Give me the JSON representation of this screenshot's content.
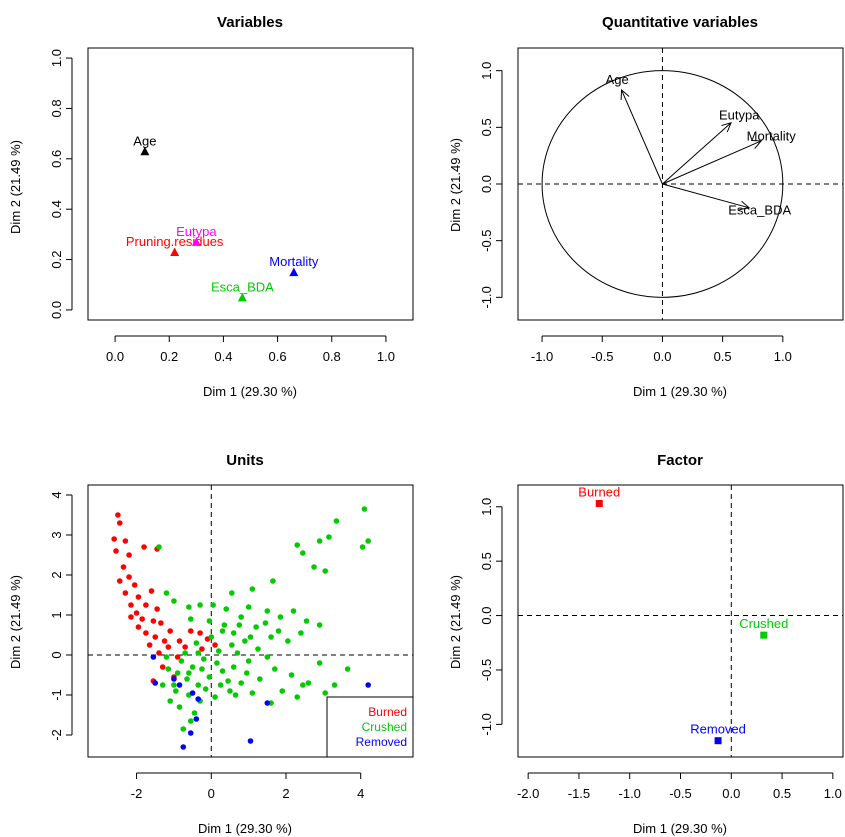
{
  "chart_data": [
    {
      "id": "variables",
      "type": "scatter",
      "title": "Variables",
      "xlabel": "Dim 1 (29.30 %)",
      "ylabel": "Dim 2 (21.49 %)",
      "xlim": [
        -0.1,
        1.1
      ],
      "ylim": [
        -0.04,
        1.04
      ],
      "xticks": [
        0.0,
        0.2,
        0.4,
        0.6,
        0.8,
        1.0
      ],
      "xtick_labels": [
        "0.0",
        "0.2",
        "0.4",
        "0.6",
        "0.8",
        "1.0"
      ],
      "yticks": [
        0.0,
        0.2,
        0.4,
        0.6,
        0.8,
        1.0
      ],
      "ytick_labels": [
        "0.0",
        "0.2",
        "0.4",
        "0.6",
        "0.8",
        "1.0"
      ],
      "points": [
        {
          "label": "Age",
          "x": 0.11,
          "y": 0.63,
          "color": "#000000"
        },
        {
          "label": "Pruning.residues",
          "x": 0.22,
          "y": 0.23,
          "color": "#ff0000"
        },
        {
          "label": "Eutypa",
          "x": 0.3,
          "y": 0.27,
          "color": "#ff00ff"
        },
        {
          "label": "Mortality",
          "x": 0.66,
          "y": 0.15,
          "color": "#0000ff"
        },
        {
          "label": "Esca_BDA",
          "x": 0.47,
          "y": 0.05,
          "color": "#00cc00"
        }
      ]
    },
    {
      "id": "quantitative",
      "type": "scatter",
      "title": "Quantitative variables",
      "xlabel": "Dim 1 (29.30 %)",
      "ylabel": "Dim 2 (21.49 %)",
      "xlim": [
        -1.2,
        1.5
      ],
      "ylim": [
        -1.2,
        1.2
      ],
      "xticks": [
        -1.0,
        -0.5,
        0.0,
        0.5,
        1.0
      ],
      "xtick_labels": [
        "-1.0",
        "-0.5",
        "0.0",
        "0.5",
        "1.0"
      ],
      "yticks": [
        -1.0,
        -0.5,
        0.0,
        0.5,
        1.0
      ],
      "ytick_labels": [
        "-1.0",
        "-0.5",
        "0.0",
        "0.5",
        "1.0"
      ],
      "circle": true,
      "arrows": [
        {
          "label": "Age",
          "x": -0.34,
          "y": 0.83
        },
        {
          "label": "Eutypa",
          "x": 0.57,
          "y": 0.54
        },
        {
          "label": "Mortality",
          "x": 0.82,
          "y": 0.38
        },
        {
          "label": "Esca_BDA",
          "x": 0.72,
          "y": -0.21
        }
      ]
    },
    {
      "id": "units",
      "type": "scatter",
      "title": "Units",
      "xlabel": "Dim 1 (29.30 %)",
      "ylabel": "Dim 2 (21.49 %)",
      "xlim": [
        -3.3,
        5.4
      ],
      "ylim": [
        -2.55,
        4.25
      ],
      "xticks": [
        -2,
        0,
        2,
        4
      ],
      "xtick_labels": [
        "-2",
        "0",
        "2",
        "4"
      ],
      "yticks": [
        -2,
        -1,
        0,
        1,
        2,
        3,
        4
      ],
      "ytick_labels": [
        "-2",
        "-1",
        "0",
        "1",
        "2",
        "3",
        "4"
      ],
      "legend": {
        "position": "bottom-right",
        "entries": [
          {
            "name": "Burned",
            "color": "#ff0000"
          },
          {
            "name": "Crushed",
            "color": "#00cc00"
          },
          {
            "name": "Removed",
            "color": "#0000ff"
          }
        ]
      },
      "series": [
        {
          "name": "Burned",
          "color": "#ff0000",
          "points": [
            [
              -2.5,
              3.5
            ],
            [
              -2.45,
              3.3
            ],
            [
              -2.6,
              2.9
            ],
            [
              -2.55,
              2.6
            ],
            [
              -2.3,
              2.85
            ],
            [
              -2.2,
              2.5
            ],
            [
              -1.8,
              2.7
            ],
            [
              -1.45,
              2.65
            ],
            [
              -2.35,
              2.2
            ],
            [
              -2.2,
              1.95
            ],
            [
              -2.05,
              1.75
            ],
            [
              -2.45,
              1.85
            ],
            [
              -2.3,
              1.55
            ],
            [
              -1.95,
              1.45
            ],
            [
              -1.6,
              1.6
            ],
            [
              -1.75,
              1.25
            ],
            [
              -1.45,
              1.15
            ],
            [
              -2.15,
              1.25
            ],
            [
              -2.0,
              1.05
            ],
            [
              -1.85,
              0.9
            ],
            [
              -1.55,
              0.85
            ],
            [
              -1.75,
              0.55
            ],
            [
              -1.5,
              0.45
            ],
            [
              -1.25,
              0.35
            ],
            [
              -1.65,
              0.25
            ],
            [
              -1.4,
              0.05
            ],
            [
              -1.15,
              0.2
            ],
            [
              -0.85,
              0.35
            ],
            [
              -1.1,
              0.6
            ],
            [
              -0.9,
              -0.05
            ],
            [
              -1.3,
              -0.3
            ],
            [
              -1.55,
              -0.65
            ],
            [
              -1.0,
              -0.55
            ],
            [
              -0.55,
              0.6
            ],
            [
              -0.3,
              0.55
            ],
            [
              -0.1,
              0.4
            ],
            [
              0.1,
              0.25
            ],
            [
              -0.25,
              0.15
            ],
            [
              -1.35,
              0.8
            ],
            [
              -1.95,
              0.7
            ],
            [
              -2.15,
              0.95
            ],
            [
              -0.7,
              0.2
            ]
          ]
        },
        {
          "name": "Crushed",
          "color": "#00cc00",
          "points": [
            [
              4.1,
              3.65
            ],
            [
              4.2,
              2.85
            ],
            [
              3.35,
              3.35
            ],
            [
              3.15,
              2.95
            ],
            [
              2.9,
              2.85
            ],
            [
              2.3,
              2.75
            ],
            [
              2.45,
              2.55
            ],
            [
              4.05,
              2.7
            ],
            [
              3.05,
              2.1
            ],
            [
              2.75,
              2.2
            ],
            [
              1.65,
              1.85
            ],
            [
              1.1,
              1.65
            ],
            [
              0.55,
              1.55
            ],
            [
              -1.4,
              2.7
            ],
            [
              -1.2,
              1.55
            ],
            [
              -1.0,
              1.35
            ],
            [
              -0.6,
              1.2
            ],
            [
              -0.3,
              1.25
            ],
            [
              0.05,
              1.25
            ],
            [
              0.4,
              1.15
            ],
            [
              1.0,
              1.2
            ],
            [
              1.5,
              1.1
            ],
            [
              1.85,
              0.95
            ],
            [
              2.55,
              0.85
            ],
            [
              2.9,
              0.75
            ],
            [
              2.4,
              0.55
            ],
            [
              2.05,
              0.35
            ],
            [
              1.6,
              0.45
            ],
            [
              0.8,
              0.95
            ],
            [
              0.35,
              0.75
            ],
            [
              0.6,
              0.55
            ],
            [
              -0.55,
              0.9
            ],
            [
              0.9,
              0.35
            ],
            [
              1.25,
              0.15
            ],
            [
              0.55,
              0.25
            ],
            [
              0.2,
              0.1
            ],
            [
              -0.2,
              -0.1
            ],
            [
              -0.5,
              -0.3
            ],
            [
              -0.8,
              -0.15
            ],
            [
              -0.9,
              -0.45
            ],
            [
              -0.65,
              -0.6
            ],
            [
              -0.35,
              -0.75
            ],
            [
              -0.05,
              -0.55
            ],
            [
              0.3,
              -0.4
            ],
            [
              0.6,
              -0.3
            ],
            [
              0.95,
              -0.45
            ],
            [
              1.3,
              -0.6
            ],
            [
              1.7,
              -0.35
            ],
            [
              2.15,
              -0.5
            ],
            [
              2.6,
              -0.7
            ],
            [
              3.05,
              -0.95
            ],
            [
              3.3,
              -0.75
            ],
            [
              2.3,
              -1.05
            ],
            [
              1.6,
              -1.2
            ],
            [
              1.1,
              -0.95
            ],
            [
              0.5,
              -0.9
            ],
            [
              0.1,
              -1.05
            ],
            [
              -0.3,
              -1.15
            ],
            [
              -0.6,
              -1.0
            ],
            [
              -0.95,
              -0.9
            ],
            [
              -1.1,
              -1.15
            ],
            [
              -0.85,
              -1.3
            ],
            [
              -0.45,
              -1.45
            ],
            [
              -0.75,
              -1.85
            ],
            [
              -0.55,
              -1.65
            ],
            [
              -1.0,
              -0.75
            ],
            [
              -1.15,
              -0.35
            ],
            [
              -0.7,
              0.05
            ],
            [
              -0.4,
              0.3
            ],
            [
              0.0,
              0.45
            ],
            [
              0.7,
              0.05
            ],
            [
              1.5,
              -0.05
            ],
            [
              2.9,
              -0.2
            ],
            [
              3.65,
              -0.35
            ],
            [
              2.45,
              -0.75
            ],
            [
              1.9,
              -0.9
            ],
            [
              1.0,
              -0.15
            ],
            [
              -0.25,
              -0.35
            ],
            [
              0.3,
              0.6
            ],
            [
              1.2,
              0.7
            ],
            [
              1.8,
              0.6
            ],
            [
              2.2,
              1.1
            ],
            [
              -0.05,
              0.85
            ],
            [
              0.45,
              -0.65
            ],
            [
              -0.15,
              -0.85
            ],
            [
              0.8,
              -0.7
            ],
            [
              1.45,
              0.8
            ],
            [
              -1.3,
              -0.75
            ],
            [
              0.15,
              -0.2
            ],
            [
              0.75,
              0.75
            ],
            [
              -0.6,
              -0.45
            ],
            [
              0.25,
              -0.75
            ],
            [
              -1.2,
              -0.05
            ],
            [
              1.05,
              0.45
            ],
            [
              0.65,
              -1.0
            ],
            [
              -0.35,
              0.05
            ]
          ]
        },
        {
          "name": "Removed",
          "color": "#0000ff",
          "points": [
            [
              -1.55,
              -0.05
            ],
            [
              -1.5,
              -0.7
            ],
            [
              -1.0,
              -0.6
            ],
            [
              -0.85,
              -0.75
            ],
            [
              -0.5,
              -0.95
            ],
            [
              -0.35,
              -1.1
            ],
            [
              -0.4,
              -1.6
            ],
            [
              -0.55,
              -1.95
            ],
            [
              -0.75,
              -2.3
            ],
            [
              1.05,
              -2.15
            ],
            [
              1.5,
              -1.2
            ],
            [
              4.2,
              -0.75
            ]
          ]
        }
      ]
    },
    {
      "id": "factor",
      "type": "scatter",
      "title": "Factor",
      "xlabel": "Dim 1 (29.30 %)",
      "ylabel": "Dim 2 (21.49 %)",
      "xlim": [
        -2.1,
        1.1
      ],
      "ylim": [
        -1.3,
        1.2
      ],
      "xticks": [
        -2.0,
        -1.5,
        -1.0,
        -0.5,
        0.0,
        0.5,
        1.0
      ],
      "xtick_labels": [
        "-2.0",
        "-1.5",
        "-1.0",
        "-0.5",
        "0.0",
        "0.5",
        "1.0"
      ],
      "yticks": [
        -1.0,
        -0.5,
        0.0,
        0.5,
        1.0
      ],
      "ytick_labels": [
        "-1.0",
        "-0.5",
        "0.0",
        "0.5",
        "1.0"
      ],
      "points": [
        {
          "label": "Burned",
          "x": -1.3,
          "y": 1.03,
          "color": "#ff0000"
        },
        {
          "label": "Crushed",
          "x": 0.32,
          "y": -0.18,
          "color": "#00cc00"
        },
        {
          "label": "Removed",
          "x": -0.13,
          "y": -1.15,
          "color": "#0000ff"
        }
      ]
    }
  ]
}
